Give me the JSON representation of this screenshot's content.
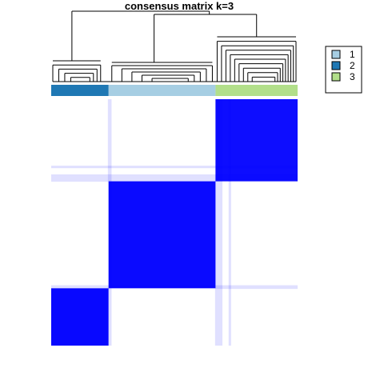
{
  "chart_data": {
    "type": "heatmap",
    "title": "consensus matrix k=3",
    "xlabel": "",
    "ylabel": "",
    "value_range": [
      0,
      1
    ],
    "color_low": "#ffffff",
    "color_high": "#0000ff",
    "class_order": [
      2,
      1,
      3
    ],
    "class_fractions": [
      0.233,
      0.434,
      0.333
    ],
    "class_colors": {
      "1": "#a6cee3",
      "2": "#1f78b4",
      "3": "#b2df8a"
    },
    "blocks": [
      {
        "row_class": 2,
        "col_class": 2,
        "consensus": 0.97
      },
      {
        "row_class": 2,
        "col_class": 1,
        "consensus": 0.0
      },
      {
        "row_class": 2,
        "col_class": 3,
        "consensus": 0.0
      },
      {
        "row_class": 1,
        "col_class": 2,
        "consensus": 0.0
      },
      {
        "row_class": 1,
        "col_class": 1,
        "consensus": 0.96
      },
      {
        "row_class": 1,
        "col_class": 3,
        "consensus": 0.0
      },
      {
        "row_class": 3,
        "col_class": 2,
        "consensus": 0.0
      },
      {
        "row_class": 3,
        "col_class": 1,
        "consensus": 0.0
      },
      {
        "row_class": 3,
        "col_class": 3,
        "consensus": 0.95
      }
    ],
    "legend": {
      "position": "top-right",
      "entries": [
        {
          "label": "1",
          "color": "#a6cee3"
        },
        {
          "label": "2",
          "color": "#1f78b4"
        },
        {
          "label": "3",
          "color": "#b2df8a"
        }
      ]
    },
    "dendrogram": "top"
  }
}
